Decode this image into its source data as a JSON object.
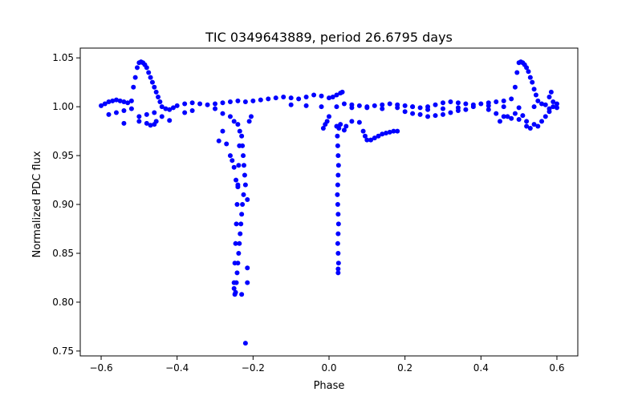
{
  "chart_data": {
    "type": "scatter",
    "title": "TIC 0349643889, period 26.6795 days",
    "xlabel": "Phase",
    "ylabel": "Normalized PDC flux",
    "xlim": [
      -0.655,
      0.655
    ],
    "ylim": [
      0.745,
      1.06
    ],
    "xticks": [
      -0.6,
      -0.4,
      -0.2,
      0.0,
      0.2,
      0.4,
      0.6
    ],
    "xtick_labels": [
      "−0.6",
      "−0.4",
      "−0.2",
      "0.0",
      "0.2",
      "0.4",
      "0.6"
    ],
    "yticks": [
      0.75,
      0.8,
      0.85,
      0.9,
      0.95,
      1.0,
      1.05
    ],
    "ytick_labels": [
      "0.75",
      "0.80",
      "0.85",
      "0.90",
      "0.95",
      "1.00",
      "1.05"
    ],
    "grid": false,
    "legend": "none",
    "marker_color": "#0000ff",
    "series": [
      {
        "points": [
          [
            -0.6,
            1.001
          ],
          [
            -0.59,
            1.003
          ],
          [
            -0.58,
            1.005
          ],
          [
            -0.57,
            1.006
          ],
          [
            -0.56,
            1.007
          ],
          [
            -0.55,
            1.006
          ],
          [
            -0.54,
            1.005
          ],
          [
            -0.53,
            1.004
          ],
          [
            -0.52,
            1.006
          ],
          [
            -0.515,
            1.02
          ],
          [
            -0.51,
            1.03
          ],
          [
            -0.505,
            1.04
          ],
          [
            -0.5,
            1.045
          ],
          [
            -0.495,
            1.046
          ],
          [
            -0.49,
            1.045
          ],
          [
            -0.485,
            1.043
          ],
          [
            -0.48,
            1.04
          ],
          [
            -0.475,
            1.035
          ],
          [
            -0.47,
            1.03
          ],
          [
            -0.465,
            1.025
          ],
          [
            -0.46,
            1.02
          ],
          [
            -0.455,
            1.015
          ],
          [
            -0.45,
            1.01
          ],
          [
            -0.445,
            1.005
          ],
          [
            -0.44,
            1.0
          ],
          [
            -0.43,
            0.998
          ],
          [
            -0.42,
            0.997
          ],
          [
            -0.41,
            0.999
          ],
          [
            -0.4,
            1.001
          ],
          [
            -0.38,
            1.003
          ],
          [
            -0.36,
            1.004
          ],
          [
            -0.34,
            1.003
          ],
          [
            -0.32,
            1.002
          ],
          [
            -0.3,
            1.003
          ],
          [
            -0.28,
            1.004
          ],
          [
            -0.26,
            1.005
          ],
          [
            -0.24,
            1.006
          ],
          [
            -0.22,
            1.005
          ],
          [
            -0.2,
            1.006
          ],
          [
            -0.18,
            1.007
          ],
          [
            -0.16,
            1.008
          ],
          [
            -0.14,
            1.009
          ],
          [
            -0.12,
            1.01
          ],
          [
            -0.1,
            1.009
          ],
          [
            -0.08,
            1.008
          ],
          [
            -0.06,
            1.01
          ],
          [
            -0.04,
            1.012
          ],
          [
            -0.02,
            1.011
          ],
          [
            0.0,
            1.009
          ],
          [
            0.01,
            1.01
          ],
          [
            0.02,
            1.012
          ],
          [
            0.03,
            1.014
          ],
          [
            0.035,
            1.015
          ],
          [
            0.04,
            1.003
          ],
          [
            0.06,
            1.002
          ],
          [
            0.08,
            1.001
          ],
          [
            0.1,
            1.0
          ],
          [
            0.12,
            1.001
          ],
          [
            0.14,
            1.002
          ],
          [
            0.16,
            1.003
          ],
          [
            0.18,
            1.002
          ],
          [
            0.2,
            1.001
          ],
          [
            0.22,
            1.0
          ],
          [
            0.24,
            0.999
          ],
          [
            0.26,
            1.0
          ],
          [
            0.28,
            1.002
          ],
          [
            0.3,
            1.004
          ],
          [
            0.32,
            1.005
          ],
          [
            0.34,
            1.004
          ],
          [
            0.36,
            1.003
          ],
          [
            0.38,
            1.002
          ],
          [
            0.4,
            1.003
          ],
          [
            0.42,
            1.004
          ],
          [
            0.44,
            1.005
          ],
          [
            0.46,
            1.006
          ],
          [
            0.48,
            1.008
          ],
          [
            0.49,
            1.02
          ],
          [
            0.495,
            1.035
          ],
          [
            0.5,
            1.045
          ],
          [
            0.505,
            1.046
          ],
          [
            0.51,
            1.045
          ],
          [
            0.515,
            1.043
          ],
          [
            0.52,
            1.04
          ],
          [
            0.525,
            1.036
          ],
          [
            0.53,
            1.03
          ],
          [
            0.535,
            1.025
          ],
          [
            0.54,
            1.018
          ],
          [
            0.545,
            1.012
          ],
          [
            0.55,
            1.006
          ],
          [
            0.56,
            1.003
          ],
          [
            0.57,
            1.002
          ],
          [
            0.58,
            1.01
          ],
          [
            0.585,
            1.015
          ],
          [
            0.59,
            1.0
          ],
          [
            0.6,
            0.999
          ],
          [
            -0.58,
            0.992
          ],
          [
            -0.56,
            0.994
          ],
          [
            -0.54,
            0.996
          ],
          [
            -0.52,
            0.998
          ],
          [
            -0.5,
            0.99
          ],
          [
            -0.48,
            0.992
          ],
          [
            -0.46,
            0.994
          ],
          [
            -0.44,
            0.99
          ],
          [
            -0.42,
            0.986
          ],
          [
            -0.38,
            0.994
          ],
          [
            -0.36,
            0.996
          ],
          [
            -0.54,
            0.983
          ],
          [
            -0.5,
            0.985
          ],
          [
            -0.48,
            0.983
          ],
          [
            -0.47,
            0.981
          ],
          [
            -0.46,
            0.982
          ],
          [
            -0.455,
            0.985
          ],
          [
            -0.3,
            0.998
          ],
          [
            -0.28,
            0.993
          ],
          [
            -0.26,
            0.99
          ],
          [
            -0.25,
            0.985
          ],
          [
            -0.24,
            0.982
          ],
          [
            -0.235,
            0.975
          ],
          [
            -0.23,
            0.97
          ],
          [
            -0.228,
            0.96
          ],
          [
            -0.226,
            0.95
          ],
          [
            -0.224,
            0.94
          ],
          [
            -0.222,
            0.93
          ],
          [
            -0.22,
            0.92
          ],
          [
            -0.225,
            0.91
          ],
          [
            -0.228,
            0.9
          ],
          [
            -0.23,
            0.89
          ],
          [
            -0.232,
            0.88
          ],
          [
            -0.234,
            0.87
          ],
          [
            -0.236,
            0.86
          ],
          [
            -0.238,
            0.85
          ],
          [
            -0.24,
            0.84
          ],
          [
            -0.242,
            0.83
          ],
          [
            -0.244,
            0.82
          ],
          [
            -0.246,
            0.81
          ],
          [
            -0.248,
            0.808
          ],
          [
            -0.25,
            0.814
          ],
          [
            -0.25,
            0.82
          ],
          [
            -0.248,
            0.84
          ],
          [
            -0.246,
            0.86
          ],
          [
            -0.244,
            0.88
          ],
          [
            -0.242,
            0.9
          ],
          [
            -0.24,
            0.92
          ],
          [
            -0.238,
            0.94
          ],
          [
            -0.236,
            0.96
          ],
          [
            -0.27,
            0.962
          ],
          [
            -0.29,
            0.965
          ],
          [
            -0.28,
            0.975
          ],
          [
            -0.26,
            0.95
          ],
          [
            -0.255,
            0.945
          ],
          [
            -0.25,
            0.938
          ],
          [
            -0.245,
            0.925
          ],
          [
            -0.24,
            0.918
          ],
          [
            -0.215,
            0.905
          ],
          [
            -0.215,
            0.835
          ],
          [
            -0.215,
            0.82
          ],
          [
            -0.23,
            0.808
          ],
          [
            -0.22,
            0.758
          ],
          [
            -0.21,
            0.985
          ],
          [
            -0.205,
            0.99
          ],
          [
            0.0,
            0.99
          ],
          [
            -0.005,
            0.985
          ],
          [
            -0.01,
            0.982
          ],
          [
            -0.015,
            0.978
          ],
          [
            0.02,
            0.98
          ],
          [
            0.022,
            0.97
          ],
          [
            0.023,
            0.96
          ],
          [
            0.024,
            0.95
          ],
          [
            0.025,
            0.94
          ],
          [
            0.024,
            0.93
          ],
          [
            0.023,
            0.92
          ],
          [
            0.022,
            0.91
          ],
          [
            0.023,
            0.9
          ],
          [
            0.024,
            0.89
          ],
          [
            0.025,
            0.88
          ],
          [
            0.024,
            0.87
          ],
          [
            0.023,
            0.86
          ],
          [
            0.024,
            0.85
          ],
          [
            0.025,
            0.84
          ],
          [
            0.024,
            0.834
          ],
          [
            0.024,
            0.83
          ],
          [
            0.026,
            0.978
          ],
          [
            0.03,
            0.982
          ],
          [
            0.04,
            0.976
          ],
          [
            0.045,
            0.98
          ],
          [
            0.06,
            0.985
          ],
          [
            0.08,
            0.984
          ],
          [
            0.09,
            0.975
          ],
          [
            0.095,
            0.97
          ],
          [
            0.1,
            0.966
          ],
          [
            0.11,
            0.966
          ],
          [
            0.12,
            0.968
          ],
          [
            0.13,
            0.97
          ],
          [
            0.14,
            0.972
          ],
          [
            0.15,
            0.973
          ],
          [
            0.16,
            0.974
          ],
          [
            0.17,
            0.975
          ],
          [
            0.18,
            0.975
          ],
          [
            0.2,
            0.995
          ],
          [
            0.22,
            0.993
          ],
          [
            0.24,
            0.992
          ],
          [
            0.26,
            0.99
          ],
          [
            0.28,
            0.991
          ],
          [
            0.3,
            0.992
          ],
          [
            0.32,
            0.994
          ],
          [
            0.34,
            0.996
          ],
          [
            0.36,
            0.997
          ],
          [
            0.42,
            0.997
          ],
          [
            0.44,
            0.993
          ],
          [
            0.46,
            0.99
          ],
          [
            0.48,
            0.988
          ],
          [
            0.5,
            0.987
          ],
          [
            0.52,
            0.985
          ],
          [
            0.54,
            0.982
          ],
          [
            0.55,
            0.98
          ],
          [
            0.56,
            0.985
          ],
          [
            0.57,
            0.99
          ],
          [
            0.58,
            0.995
          ],
          [
            0.59,
            1.005
          ],
          [
            0.6,
            1.003
          ],
          [
            0.45,
            0.985
          ],
          [
            0.47,
            0.99
          ],
          [
            0.49,
            0.993
          ],
          [
            0.51,
            0.991
          ],
          [
            0.52,
            0.98
          ],
          [
            0.53,
            0.978
          ],
          [
            -0.1,
            1.002
          ],
          [
            -0.06,
            1.001
          ],
          [
            -0.02,
            1.0
          ],
          [
            0.02,
            1.0
          ],
          [
            0.06,
            0.999
          ],
          [
            0.1,
            0.999
          ],
          [
            0.14,
            0.998
          ],
          [
            0.18,
            0.999
          ],
          [
            0.22,
            1.0
          ],
          [
            0.26,
            0.997
          ],
          [
            0.3,
            0.998
          ],
          [
            0.34,
            0.999
          ],
          [
            0.38,
            1.0
          ],
          [
            0.42,
            1.001
          ],
          [
            0.46,
            1.0
          ],
          [
            0.5,
            0.999
          ],
          [
            0.54,
            1.0
          ],
          [
            0.58,
            0.998
          ]
        ]
      }
    ]
  }
}
